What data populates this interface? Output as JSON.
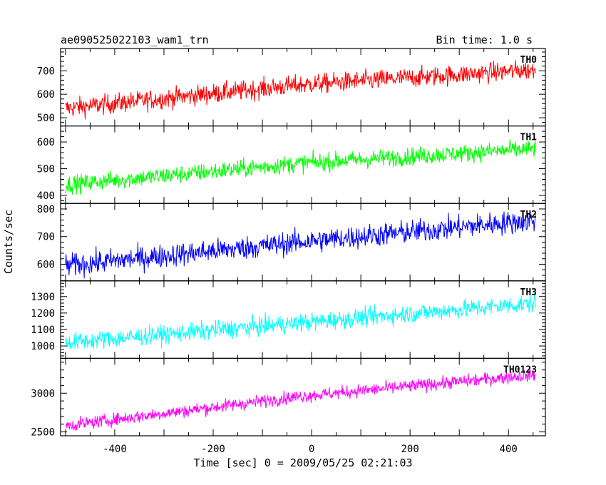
{
  "header": {
    "title": "ae090525022103_wam1_trn",
    "bin_time": "Bin time: 1.0 s"
  },
  "chart_data": {
    "type": "line",
    "xlabel": "Time [sec] 0 = 2009/05/25 02:21:03",
    "ylabel": "Counts/sec",
    "xlim": [
      -510,
      475
    ],
    "x_range": [
      -500,
      455
    ],
    "x_ticks": [
      -400,
      -200,
      0,
      200,
      400
    ],
    "grid": false,
    "panels": [
      {
        "name": "TH0",
        "color": "#ff0000",
        "ylim": [
          465,
          795
        ],
        "y_ticks": [
          500,
          600,
          700
        ],
        "trend": {
          "start": 540,
          "mid": 640,
          "end": 705,
          "noise": 38
        }
      },
      {
        "name": "TH1",
        "color": "#00ff00",
        "ylim": [
          370,
          660
        ],
        "y_ticks": [
          400,
          500,
          600
        ],
        "trend": {
          "start": 440,
          "mid": 520,
          "end": 575,
          "noise": 30
        }
      },
      {
        "name": "TH2",
        "color": "#0000ff",
        "ylim": [
          540,
          820
        ],
        "y_ticks": [
          600,
          700,
          800
        ],
        "trend": {
          "start": 595,
          "mid": 680,
          "end": 760,
          "noise": 38
        }
      },
      {
        "name": "TH3",
        "color": "#00ffff",
        "ylim": [
          925,
          1395
        ],
        "y_ticks": [
          1000,
          1100,
          1200,
          1300
        ],
        "trend": {
          "start": 1020,
          "mid": 1140,
          "end": 1260,
          "noise": 50
        }
      },
      {
        "name": "TH0123",
        "color": "#ff00ff",
        "ylim": [
          2450,
          3450
        ],
        "y_ticks": [
          2500,
          3000
        ],
        "trend": {
          "start": 2580,
          "mid": 2960,
          "end": 3240,
          "noise": 75
        }
      }
    ]
  }
}
